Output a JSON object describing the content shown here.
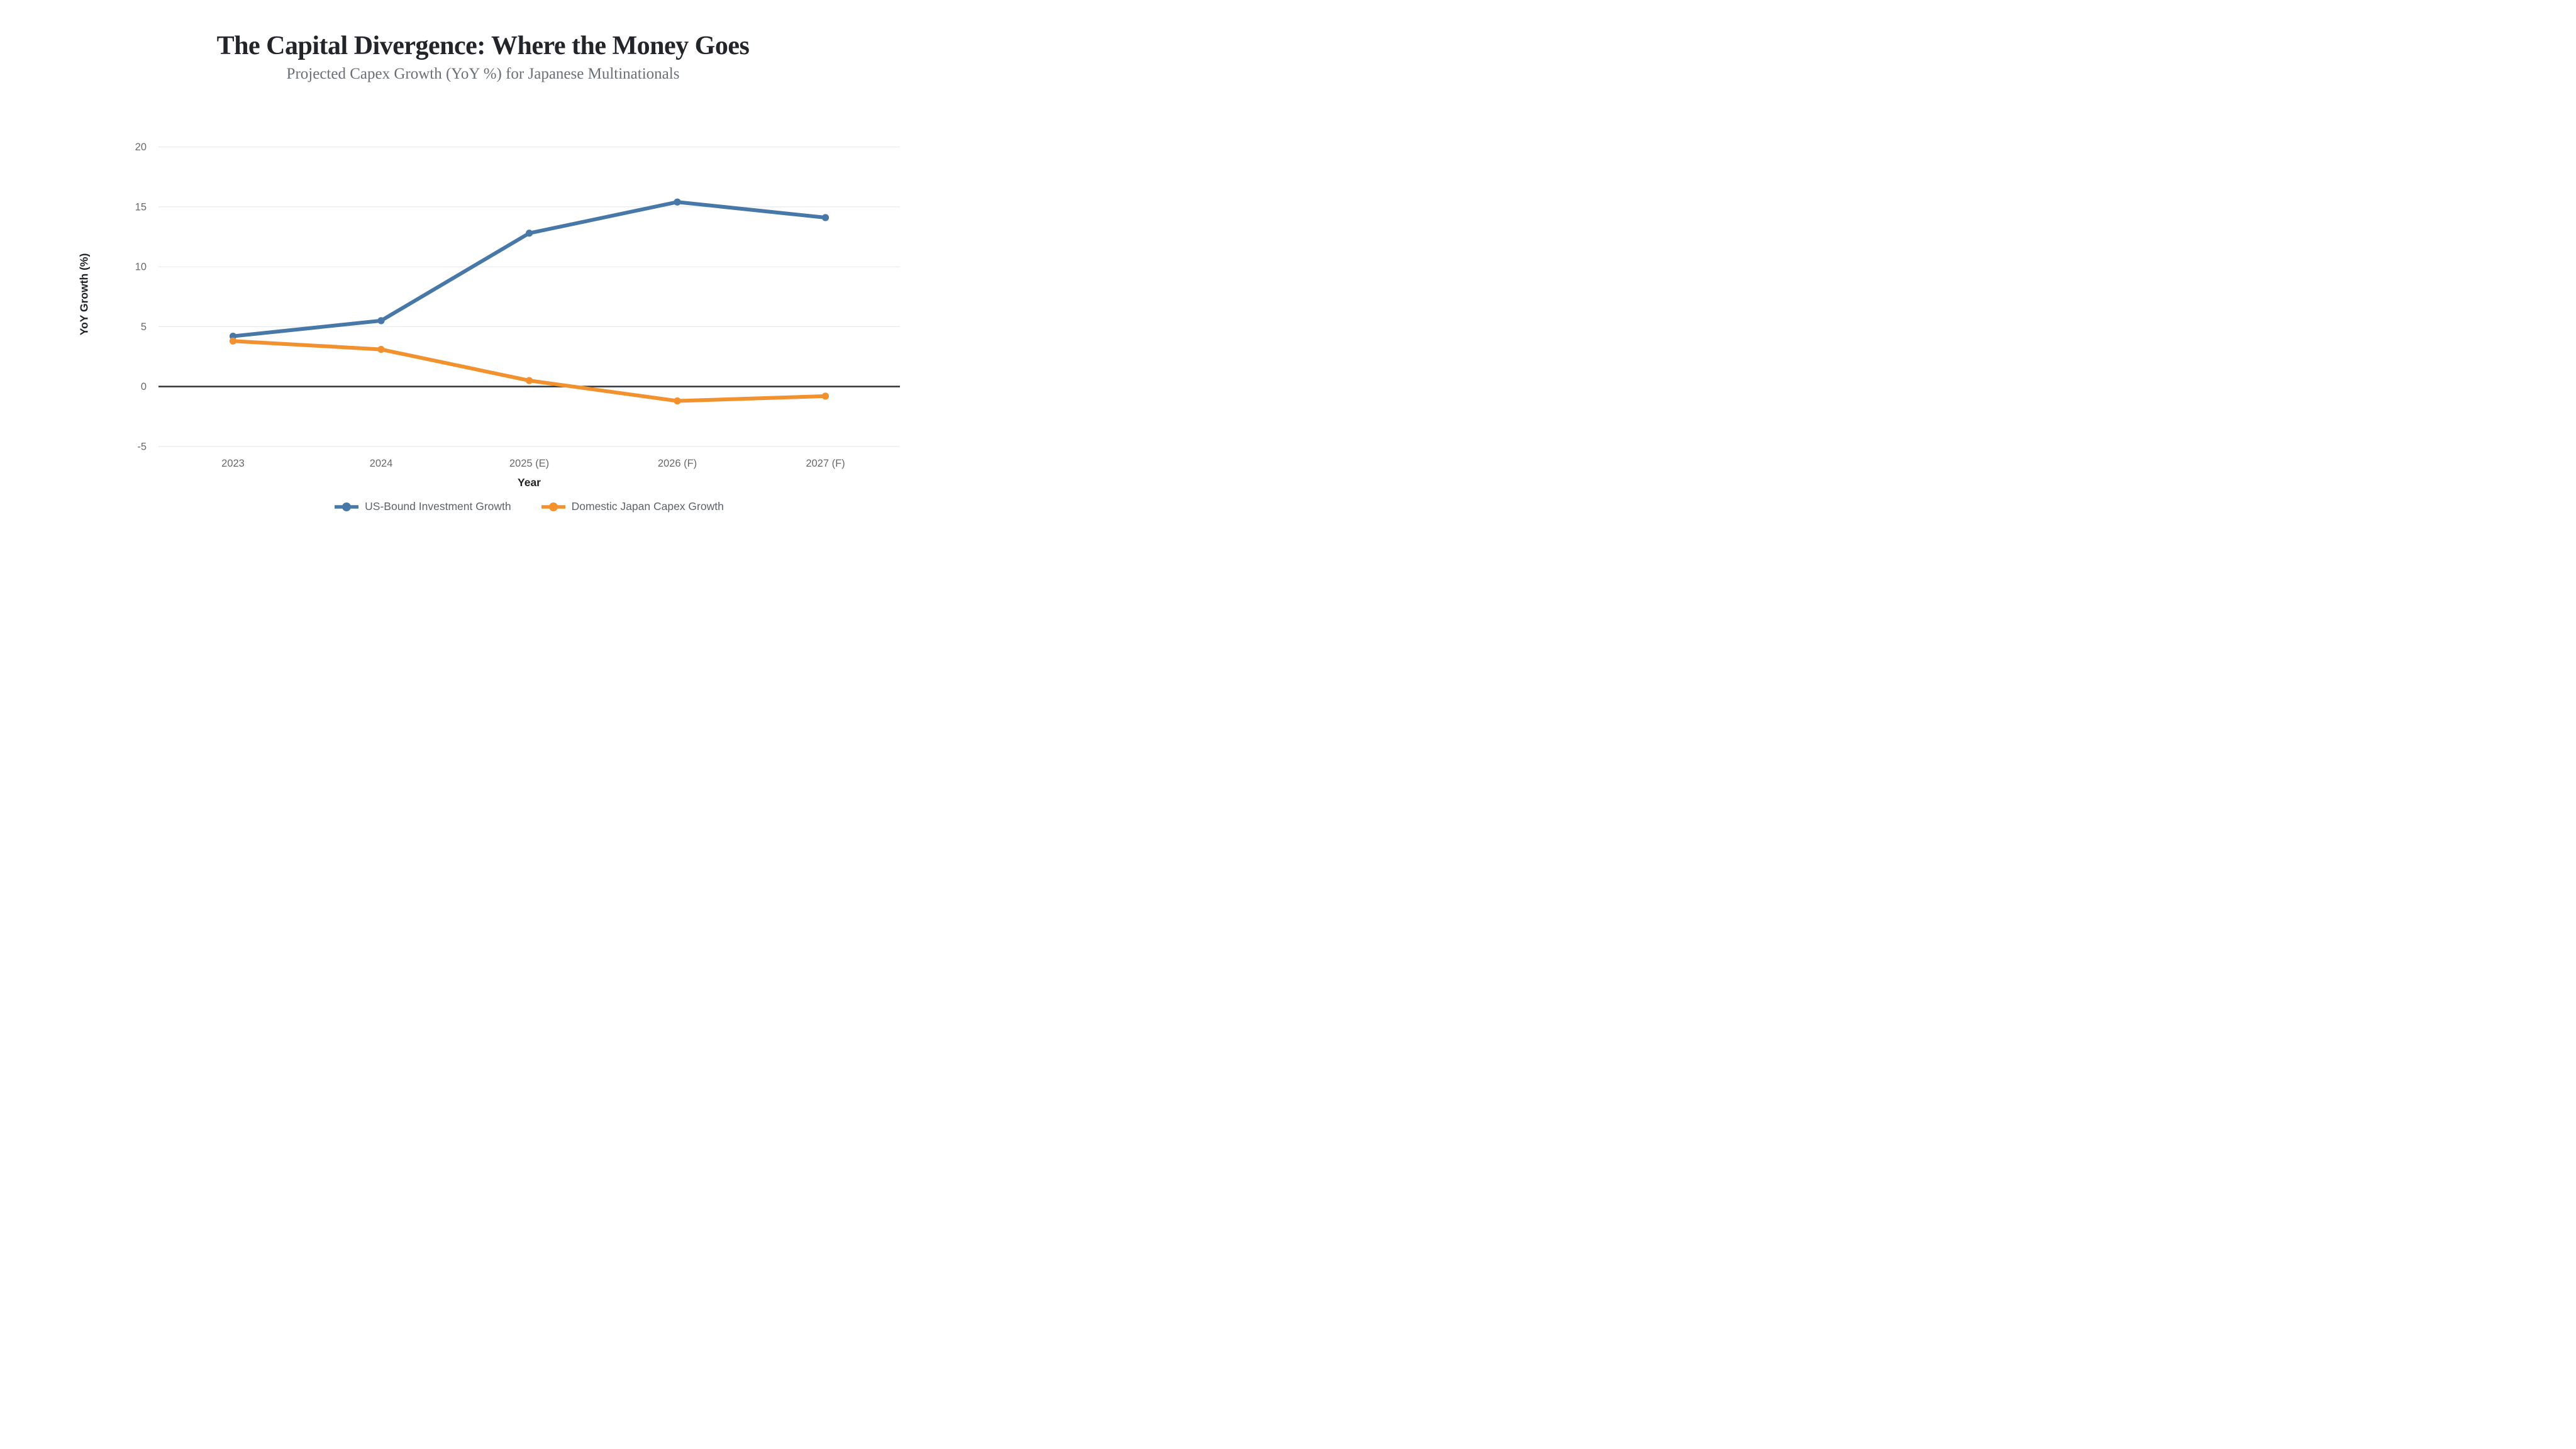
{
  "chart_data": {
    "type": "line",
    "title": "The Capital Divergence: Where the Money Goes",
    "subtitle": "Projected Capex Growth (YoY %) for Japanese Multinationals",
    "categories": [
      "2023",
      "2024",
      "2025 (E)",
      "2026 (F)",
      "2027 (F)"
    ],
    "series": [
      {
        "name": "US-Bound Investment Growth",
        "color": "#4878a8",
        "values": [
          4.2,
          5.5,
          12.8,
          15.4,
          14.1
        ]
      },
      {
        "name": "Domestic Japan Capex Growth",
        "color": "#f2912d",
        "values": [
          3.8,
          3.1,
          0.5,
          -1.2,
          -0.8
        ]
      }
    ],
    "xlabel": "Year",
    "ylabel": "YoY Growth (%)",
    "ylim": [
      -5,
      20
    ],
    "yticks": [
      20,
      15,
      10,
      5,
      0,
      -5
    ],
    "grid": true,
    "zero_line": true,
    "legend_position": "bottom"
  },
  "style": {
    "background": "#ffffff",
    "gridline_color": "#e8eaee",
    "zero_line_color": "#2f3337",
    "tick_label_color": "#66696d",
    "axis_title_color": "#1f2326",
    "legend_text_color": "#5d6368",
    "title_color": "#222529",
    "subtitle_color": "#6b7076"
  }
}
